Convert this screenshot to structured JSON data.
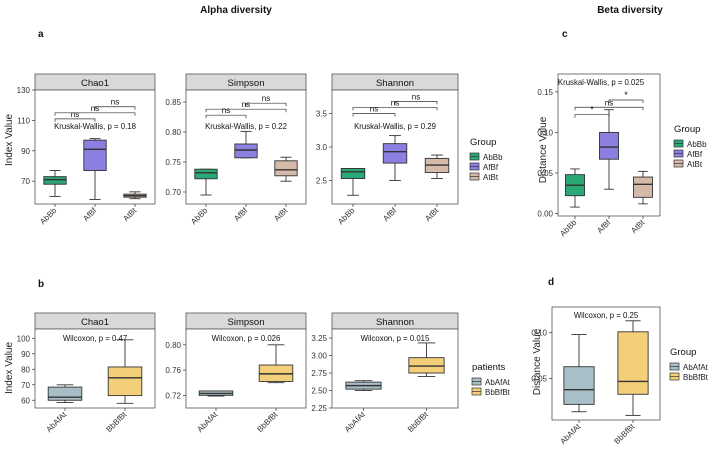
{
  "headings": {
    "alpha": "Alpha diversity",
    "beta": "Beta diversity"
  },
  "panel_labels": {
    "a": "a",
    "b": "b",
    "c": "c",
    "d": "d"
  },
  "colors": {
    "AbBb": "#2aa876",
    "AfBf": "#8b7fe0",
    "AtBt": "#d5b9a9",
    "AbAfAt": "#a9bfc8",
    "BbBfBt": "#f3cf7a",
    "strip": "#d9d9d9",
    "panel_border": "#555555"
  },
  "chart_data": [
    {
      "id": "a",
      "type": "boxplot",
      "ylabel": "Index Value",
      "categories": [
        "AbBb",
        "AfBf",
        "AtBt"
      ],
      "legend": {
        "title": "Group",
        "entries": [
          "AbBb",
          "AfBf",
          "AtBt"
        ],
        "placement": "right"
      },
      "facets": [
        {
          "title": "Chao1",
          "ylim": [
            55,
            130
          ],
          "yticks": [
            70,
            90,
            110,
            130
          ],
          "annotation": "Kruskal-Wallis, p = 0.18",
          "boxes": [
            {
              "min": 60,
              "q1": 68,
              "median": 71,
              "q3": 73,
              "max": 77
            },
            {
              "min": 58,
              "q1": 77,
              "median": 91,
              "q3": 97,
              "max": 98
            },
            {
              "min": 58.5,
              "q1": 59.5,
              "median": 60.5,
              "q3": 61.5,
              "max": 63
            }
          ],
          "comparisons": [
            {
              "from": 1,
              "to": 2,
              "label": "ns",
              "y": 119
            },
            {
              "from": 0,
              "to": 2,
              "label": "ns",
              "y": 115
            },
            {
              "from": 0,
              "to": 1,
              "label": "ns",
              "y": 111
            }
          ]
        },
        {
          "title": "Simpson",
          "ylim": [
            0.68,
            0.87
          ],
          "yticks": [
            0.7,
            0.75,
            0.8,
            0.85
          ],
          "annotation": "Kruskal-Wallis, p = 0.22",
          "boxes": [
            {
              "min": 0.695,
              "q1": 0.722,
              "median": 0.732,
              "q3": 0.738,
              "max": 0.738
            },
            {
              "min": 0.757,
              "q1": 0.757,
              "median": 0.77,
              "q3": 0.78,
              "max": 0.801
            },
            {
              "min": 0.718,
              "q1": 0.727,
              "median": 0.737,
              "q3": 0.752,
              "max": 0.758
            }
          ],
          "comparisons": [
            {
              "from": 1,
              "to": 2,
              "label": "ns",
              "y": 0.848
            },
            {
              "from": 0,
              "to": 2,
              "label": "ns",
              "y": 0.838
            },
            {
              "from": 0,
              "to": 1,
              "label": "ns",
              "y": 0.828
            }
          ]
        },
        {
          "title": "Shannon",
          "ylim": [
            2.15,
            3.85
          ],
          "yticks": [
            2.5,
            3.0,
            3.5
          ],
          "annotation": "Kruskal-Wallis, p = 0.29",
          "boxes": [
            {
              "min": 2.28,
              "q1": 2.53,
              "median": 2.63,
              "q3": 2.68,
              "max": 2.68
            },
            {
              "min": 2.5,
              "q1": 2.76,
              "median": 2.93,
              "q3": 3.05,
              "max": 3.17
            },
            {
              "min": 2.53,
              "q1": 2.62,
              "median": 2.73,
              "q3": 2.83,
              "max": 2.88
            }
          ],
          "comparisons": [
            {
              "from": 1,
              "to": 2,
              "label": "ns",
              "y": 3.68
            },
            {
              "from": 0,
              "to": 2,
              "label": "ns",
              "y": 3.59
            },
            {
              "from": 0,
              "to": 1,
              "label": "ns",
              "y": 3.5
            }
          ]
        }
      ]
    },
    {
      "id": "b",
      "type": "boxplot",
      "ylabel": "Index Value",
      "categories": [
        "AbAfAt",
        "BbBfBt"
      ],
      "legend": {
        "title": "patients",
        "entries": [
          "AbAfAt",
          "BbBfBt"
        ],
        "placement": "right"
      },
      "facets": [
        {
          "title": "Chao1",
          "ylim": [
            55,
            106
          ],
          "yticks": [
            60,
            70,
            80,
            90,
            100
          ],
          "annotation": "Wilcoxon, p = 0.47",
          "boxes": [
            {
              "min": 58.5,
              "q1": 60,
              "median": 62,
              "q3": 68.5,
              "max": 70
            },
            {
              "min": 58,
              "q1": 63,
              "median": 74.5,
              "q3": 81.5,
              "max": 99
            }
          ]
        },
        {
          "title": "Simpson",
          "ylim": [
            0.7,
            0.825
          ],
          "yticks": [
            0.72,
            0.76,
            0.8
          ],
          "annotation": "Wilcoxon, p = 0.026",
          "boxes": [
            {
              "min": 0.719,
              "q1": 0.72,
              "median": 0.723,
              "q3": 0.727,
              "max": 0.727
            },
            {
              "min": 0.74,
              "q1": 0.742,
              "median": 0.754,
              "q3": 0.768,
              "max": 0.8
            }
          ]
        },
        {
          "title": "Shannon",
          "ylim": [
            2.25,
            3.38
          ],
          "yticks": [
            2.25,
            2.5,
            2.75,
            3.0,
            3.25
          ],
          "annotation": "Wilcoxon, p = 0.015",
          "boxes": [
            {
              "min": 2.5,
              "q1": 2.52,
              "median": 2.57,
              "q3": 2.62,
              "max": 2.64
            },
            {
              "min": 2.7,
              "q1": 2.75,
              "median": 2.85,
              "q3": 2.97,
              "max": 3.18
            }
          ]
        }
      ]
    },
    {
      "id": "c",
      "type": "boxplot",
      "ylabel": "Distance Value",
      "categories": [
        "AbBb",
        "AfBf",
        "AtBt"
      ],
      "legend": {
        "title": "Group",
        "entries": [
          "AbBb",
          "AfBf",
          "AtBt"
        ],
        "placement": "right"
      },
      "facets": [
        {
          "title": "",
          "ylim": [
            -0.003,
            0.172
          ],
          "yticks": [
            0.0,
            0.05,
            0.1,
            0.15
          ],
          "annotation": "Kruskal-Wallis, p = 0.025",
          "boxes": [
            {
              "min": 0.008,
              "q1": 0.022,
              "median": 0.035,
              "q3": 0.048,
              "max": 0.055
            },
            {
              "min": 0.03,
              "q1": 0.067,
              "median": 0.082,
              "q3": 0.1,
              "max": 0.128
            },
            {
              "min": 0.012,
              "q1": 0.02,
              "median": 0.036,
              "q3": 0.045,
              "max": 0.052
            }
          ],
          "comparisons": [
            {
              "from": 1,
              "to": 2,
              "label": "*",
              "y": 0.14
            },
            {
              "from": 0,
              "to": 2,
              "label": "ns",
              "y": 0.131
            },
            {
              "from": 0,
              "to": 1,
              "label": "*",
              "y": 0.122
            }
          ]
        }
      ]
    },
    {
      "id": "d",
      "type": "boxplot",
      "ylabel": "Distance Value",
      "categories": [
        "AbAfAt",
        "BbBfBt"
      ],
      "legend": {
        "title": "Group",
        "entries": [
          "AbAfAt",
          "BbBfBt"
        ],
        "placement": "right"
      },
      "facets": [
        {
          "title": "",
          "ylim": [
            0.005,
            0.128
          ],
          "yticks": [
            0.05,
            0.1
          ],
          "annotation": "Wilcoxon, p = 0.25",
          "boxes": [
            {
              "min": 0.014,
              "q1": 0.022,
              "median": 0.038,
              "q3": 0.063,
              "max": 0.098
            },
            {
              "min": 0.01,
              "q1": 0.033,
              "median": 0.047,
              "q3": 0.101,
              "max": 0.113
            }
          ]
        }
      ]
    }
  ]
}
